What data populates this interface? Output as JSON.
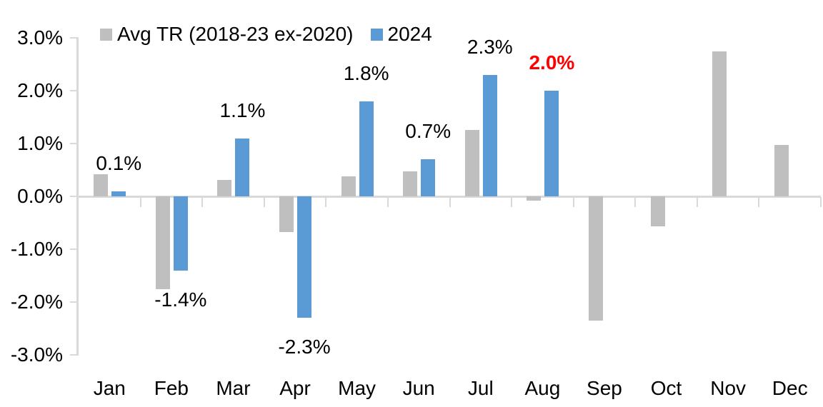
{
  "chart_data": {
    "type": "bar",
    "title": "",
    "categories": [
      "Jan",
      "Feb",
      "Mar",
      "Apr",
      "May",
      "Jun",
      "Jul",
      "Aug",
      "Sep",
      "Oct",
      "Nov",
      "Dec"
    ],
    "series": [
      {
        "name": "Avg TR (2018-23 ex-2020)",
        "color": "#BFBFBF",
        "values": [
          0.42,
          -1.75,
          0.31,
          -0.68,
          0.38,
          0.47,
          1.26,
          -0.08,
          -2.35,
          -0.57,
          2.75,
          0.97
        ]
      },
      {
        "name": "2024",
        "color": "#5B9BD5",
        "values": [
          0.1,
          -1.4,
          1.1,
          -2.3,
          1.8,
          0.7,
          2.3,
          2.0,
          null,
          null,
          null,
          null
        ],
        "data_labels": [
          "0.1%",
          "-1.4%",
          "1.1%",
          "-2.3%",
          "1.8%",
          "0.7%",
          "2.3%",
          "2.0%"
        ],
        "label_highlight_index": 7,
        "label_highlight_color": "#FF0000",
        "label_default_color": "#000000"
      }
    ],
    "ylabel": "",
    "ylim": [
      -3,
      3
    ],
    "ytick_labels": [
      "3.0%",
      "2.0%",
      "1.0%",
      "0.0%",
      "-1.0%",
      "-2.0%",
      "-3.0%"
    ],
    "gridlines": false,
    "legend_position": "top",
    "axis_color": "#D9D9D9",
    "text_color": "#000000",
    "background_color": "#FFFFFF"
  }
}
